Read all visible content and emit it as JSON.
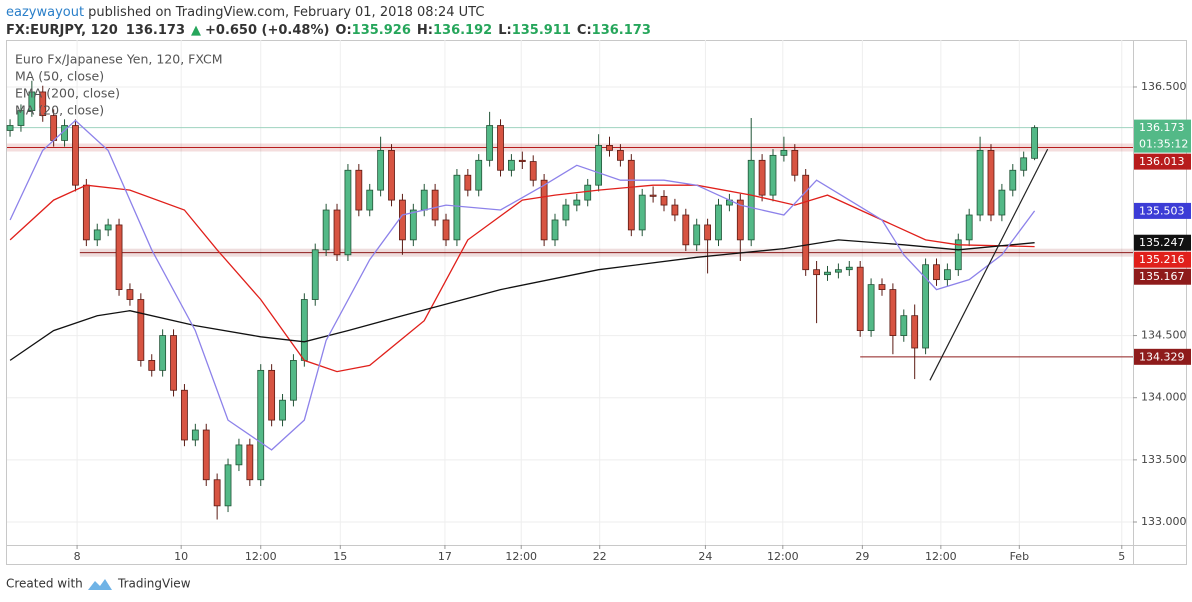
{
  "chart_data": {
    "type": "candlestick",
    "header": {
      "author": "eazywayout",
      "published": "published on TradingView.com, February 01, 2018 08:24 UTC",
      "symbol": "FX:EURJPY, 120",
      "change_arrow": "▲",
      "change": "+0.650 (+0.48%)",
      "o": "O:",
      "h": "H:",
      "l": "L:",
      "c": "C:"
    },
    "title": "Euro Fx/Japanese Yen, 120, FXCM",
    "countdown": "01:35:12",
    "footer": {
      "created": "Created with",
      "brand": "TradingView"
    },
    "up_color": "#53b987",
    "down_color": "#d75442",
    "xlim": [
      -0.28,
      103.03
    ],
    "xticks": [
      {
        "value": 6.15,
        "label": "8"
      },
      {
        "value": 15.7,
        "label": "10"
      },
      {
        "value": 23,
        "label": "12:00"
      },
      {
        "value": 30.3,
        "label": "15"
      },
      {
        "value": 39.9,
        "label": "17"
      },
      {
        "value": 46.9,
        "label": "12:00"
      },
      {
        "value": 54.1,
        "label": "22"
      },
      {
        "value": 63.8,
        "label": "24"
      },
      {
        "value": 70.9,
        "label": "12:00"
      },
      {
        "value": 78.2,
        "label": "29"
      },
      {
        "value": 85.4,
        "label": "12:00"
      },
      {
        "value": 92.6,
        "label": "Feb"
      },
      {
        "value": 102.0,
        "label": "5"
      }
    ],
    "ylim": [
      132.815,
      136.878
    ],
    "yticks": [
      {
        "value": 133,
        "label": "133.000"
      },
      {
        "value": 133.5,
        "label": "133.500"
      },
      {
        "value": 134,
        "label": "134.000"
      },
      {
        "value": 134.5,
        "label": "134.500"
      },
      {
        "value": 136.5,
        "label": "136.500"
      }
    ],
    "grid": true,
    "candles": [
      [
        136.15,
        136.24,
        136.1,
        136.19
      ],
      [
        136.19,
        136.36,
        136.14,
        136.31
      ],
      [
        136.31,
        136.55,
        136.26,
        136.46
      ],
      [
        136.46,
        136.51,
        136.22,
        136.27
      ],
      [
        136.27,
        136.32,
        136.02,
        136.07
      ],
      [
        136.07,
        136.24,
        136.02,
        136.19
      ],
      [
        136.19,
        136.24,
        135.66,
        135.71
      ],
      [
        135.71,
        135.76,
        135.22,
        135.27
      ],
      [
        135.27,
        135.4,
        135.22,
        135.35
      ],
      [
        135.35,
        135.44,
        135.3,
        135.39
      ],
      [
        135.39,
        135.44,
        134.82,
        134.87
      ],
      [
        134.87,
        134.92,
        134.74,
        134.79
      ],
      [
        134.79,
        134.84,
        134.25,
        134.3
      ],
      [
        134.3,
        134.35,
        134.17,
        134.22
      ],
      [
        134.22,
        134.55,
        134.17,
        134.5
      ],
      [
        134.5,
        134.55,
        134.01,
        134.06
      ],
      [
        134.06,
        134.11,
        133.61,
        133.66
      ],
      [
        133.66,
        133.79,
        133.61,
        133.74
      ],
      [
        133.74,
        133.79,
        133.29,
        133.34
      ],
      [
        133.34,
        133.39,
        133.02,
        133.13
      ],
      [
        133.13,
        133.51,
        133.08,
        133.46
      ],
      [
        133.46,
        133.67,
        133.41,
        133.62
      ],
      [
        133.62,
        133.67,
        133.29,
        133.34
      ],
      [
        133.34,
        134.27,
        133.29,
        134.22
      ],
      [
        134.22,
        134.27,
        133.77,
        133.82
      ],
      [
        133.82,
        134.03,
        133.77,
        133.98
      ],
      [
        133.98,
        134.35,
        133.93,
        134.3
      ],
      [
        134.3,
        134.84,
        134.25,
        134.79
      ],
      [
        134.79,
        135.24,
        134.74,
        135.19
      ],
      [
        135.19,
        135.56,
        135.14,
        135.51
      ],
      [
        135.51,
        135.56,
        135.1,
        135.15
      ],
      [
        135.15,
        135.88,
        135.1,
        135.83
      ],
      [
        135.83,
        135.88,
        135.46,
        135.51
      ],
      [
        135.51,
        135.72,
        135.46,
        135.67
      ],
      [
        135.67,
        136.1,
        135.62,
        135.99
      ],
      [
        135.99,
        136.04,
        135.54,
        135.59
      ],
      [
        135.59,
        135.64,
        135.15,
        135.27
      ],
      [
        135.27,
        135.56,
        135.22,
        135.51
      ],
      [
        135.51,
        135.72,
        135.46,
        135.67
      ],
      [
        135.67,
        135.72,
        135.38,
        135.43
      ],
      [
        135.43,
        135.48,
        135.22,
        135.27
      ],
      [
        135.27,
        135.84,
        135.22,
        135.79
      ],
      [
        135.79,
        135.84,
        135.62,
        135.67
      ],
      [
        135.67,
        135.96,
        135.62,
        135.91
      ],
      [
        135.91,
        136.3,
        135.86,
        136.19
      ],
      [
        136.19,
        136.24,
        135.78,
        135.83
      ],
      [
        135.83,
        135.96,
        135.78,
        135.91
      ],
      [
        135.91,
        135.98,
        135.84,
        135.9
      ],
      [
        135.9,
        135.95,
        135.7,
        135.75
      ],
      [
        135.75,
        135.8,
        135.22,
        135.27
      ],
      [
        135.27,
        135.48,
        135.22,
        135.43
      ],
      [
        135.43,
        135.6,
        135.38,
        135.55
      ],
      [
        135.55,
        135.64,
        135.5,
        135.59
      ],
      [
        135.59,
        135.76,
        135.54,
        135.71
      ],
      [
        135.71,
        136.12,
        135.66,
        136.03
      ],
      [
        136.03,
        136.1,
        135.94,
        135.99
      ],
      [
        135.99,
        136.04,
        135.86,
        135.91
      ],
      [
        135.91,
        135.96,
        135.3,
        135.35
      ],
      [
        135.35,
        135.68,
        135.3,
        135.63
      ],
      [
        135.63,
        135.7,
        135.57,
        135.62
      ],
      [
        135.62,
        135.67,
        135.5,
        135.55
      ],
      [
        135.55,
        135.6,
        135.42,
        135.47
      ],
      [
        135.47,
        135.52,
        135.18,
        135.23
      ],
      [
        135.23,
        135.44,
        135.18,
        135.39
      ],
      [
        135.39,
        135.44,
        135.0,
        135.27
      ],
      [
        135.27,
        135.6,
        135.22,
        135.55
      ],
      [
        135.55,
        135.64,
        135.5,
        135.59
      ],
      [
        135.59,
        135.64,
        135.1,
        135.27
      ],
      [
        135.27,
        136.25,
        135.22,
        135.91
      ],
      [
        135.91,
        135.96,
        135.58,
        135.63
      ],
      [
        135.63,
        136.0,
        135.58,
        135.95
      ],
      [
        135.95,
        136.1,
        135.9,
        135.99
      ],
      [
        135.99,
        136.04,
        135.74,
        135.79
      ],
      [
        135.79,
        135.84,
        134.98,
        135.03
      ],
      [
        135.03,
        135.1,
        134.6,
        134.99
      ],
      [
        134.99,
        135.06,
        134.94,
        135.01
      ],
      [
        135.01,
        135.08,
        134.96,
        135.03
      ],
      [
        135.03,
        135.1,
        134.98,
        135.05
      ],
      [
        135.05,
        135.1,
        134.49,
        134.54
      ],
      [
        134.54,
        134.96,
        134.49,
        134.91
      ],
      [
        134.91,
        134.96,
        134.82,
        134.87
      ],
      [
        134.87,
        134.92,
        134.35,
        134.5
      ],
      [
        134.5,
        134.71,
        134.45,
        134.66
      ],
      [
        134.66,
        134.75,
        134.15,
        134.4
      ],
      [
        134.4,
        135.12,
        134.35,
        135.07
      ],
      [
        135.07,
        135.12,
        134.9,
        134.95
      ],
      [
        134.95,
        135.08,
        134.9,
        135.03
      ],
      [
        135.03,
        135.32,
        134.98,
        135.27
      ],
      [
        135.27,
        135.52,
        135.22,
        135.47
      ],
      [
        135.47,
        136.1,
        135.42,
        135.99
      ],
      [
        135.99,
        136.04,
        135.42,
        135.47
      ],
      [
        135.47,
        135.72,
        135.42,
        135.67
      ],
      [
        135.67,
        135.88,
        135.62,
        135.83
      ],
      [
        135.83,
        135.98,
        135.78,
        135.93
      ],
      [
        135.926,
        136.192,
        135.911,
        136.173
      ]
    ],
    "series": [
      {
        "name": "MA (50, close)",
        "color": "#e0201b",
        "x": [
          0,
          4,
          7,
          11,
          16,
          19,
          23,
          27,
          30,
          33,
          38,
          42,
          47,
          50,
          54,
          59,
          63,
          68,
          72,
          75,
          79,
          84,
          87,
          94
        ],
        "values": [
          135.27,
          135.59,
          135.71,
          135.67,
          135.51,
          135.19,
          134.79,
          134.3,
          134.21,
          134.26,
          134.62,
          135.27,
          135.59,
          135.63,
          135.67,
          135.71,
          135.71,
          135.63,
          135.55,
          135.63,
          135.47,
          135.27,
          135.23,
          135.216
        ]
      },
      {
        "name": "EMA (200, close)",
        "color": "#111111",
        "x": [
          0,
          4,
          8,
          11,
          17,
          23,
          27,
          31,
          36,
          45,
          54,
          63,
          71,
          76,
          82,
          87,
          94
        ],
        "values": [
          134.3,
          134.54,
          134.66,
          134.7,
          134.58,
          134.49,
          134.45,
          134.54,
          134.66,
          134.87,
          135.03,
          135.13,
          135.2,
          135.27,
          135.23,
          135.19,
          135.247
        ]
      },
      {
        "name": "MA (20, close)",
        "color": "#8d82ea",
        "x": [
          0,
          3,
          6,
          9,
          13,
          17,
          20,
          24,
          27,
          29,
          33,
          36,
          40,
          45,
          49,
          52,
          56,
          60,
          63,
          67,
          71,
          74,
          77,
          80,
          82,
          85,
          88,
          91,
          94
        ],
        "values": [
          135.43,
          135.99,
          136.23,
          135.99,
          135.19,
          134.54,
          133.82,
          133.58,
          133.82,
          134.46,
          135.11,
          135.47,
          135.55,
          135.51,
          135.71,
          135.87,
          135.75,
          135.75,
          135.71,
          135.55,
          135.47,
          135.75,
          135.59,
          135.43,
          135.15,
          134.87,
          134.95,
          135.15,
          135.503
        ]
      }
    ],
    "levels": [
      {
        "value": 136.013,
        "color": "#b71c1c",
        "band": true
      },
      {
        "value": 135.167,
        "from": 6.4,
        "color": "#8e1b1b",
        "band": true
      },
      {
        "value": 134.329,
        "from": 78.0,
        "color": "#8e1b1b",
        "band": false
      }
    ],
    "trendline": {
      "from": [
        84.4,
        134.14
      ],
      "to": [
        95.2,
        136.0
      ],
      "color": "#222222"
    }
  }
}
